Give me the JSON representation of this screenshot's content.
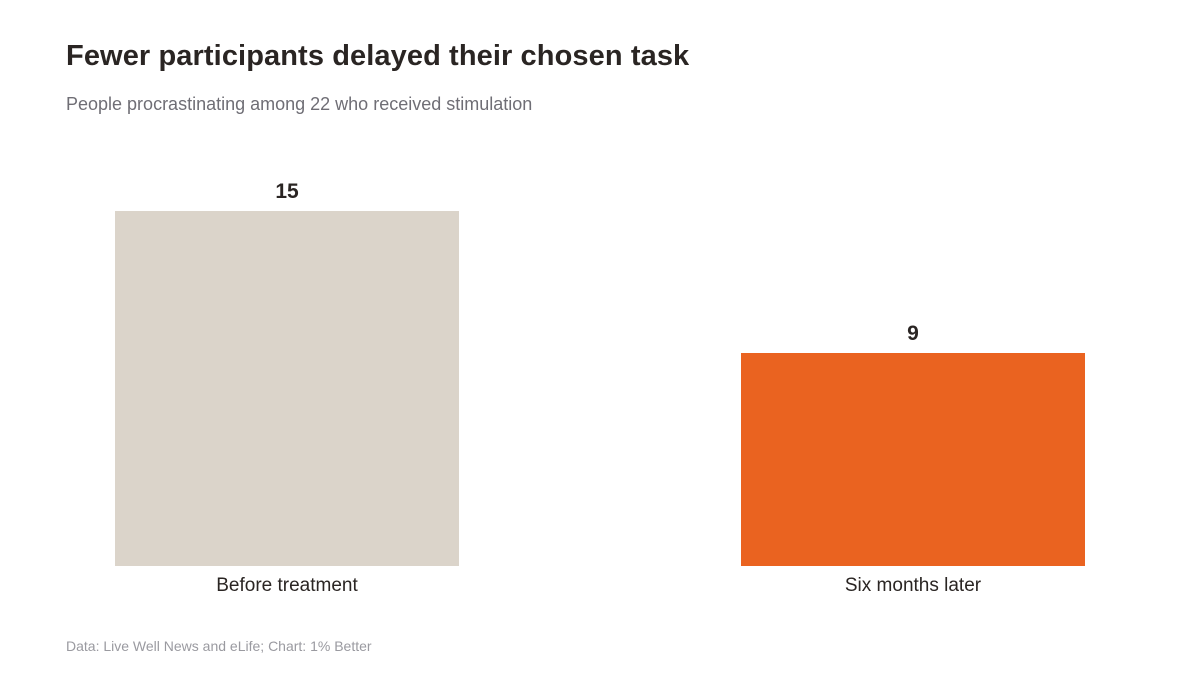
{
  "chart_data": {
    "type": "bar",
    "title": "Fewer participants delayed their chosen task",
    "subtitle": "People procrastinating among 22 who received stimulation",
    "categories": [
      "Before treatment",
      "Six months later"
    ],
    "values": [
      15,
      9
    ],
    "colors": [
      "#dbd4ca",
      "#ea6320"
    ],
    "ylim": [
      0,
      15
    ],
    "grid": false,
    "legend": "none",
    "source": "Data: Live Well News and eLife; Chart: 1% Better"
  }
}
